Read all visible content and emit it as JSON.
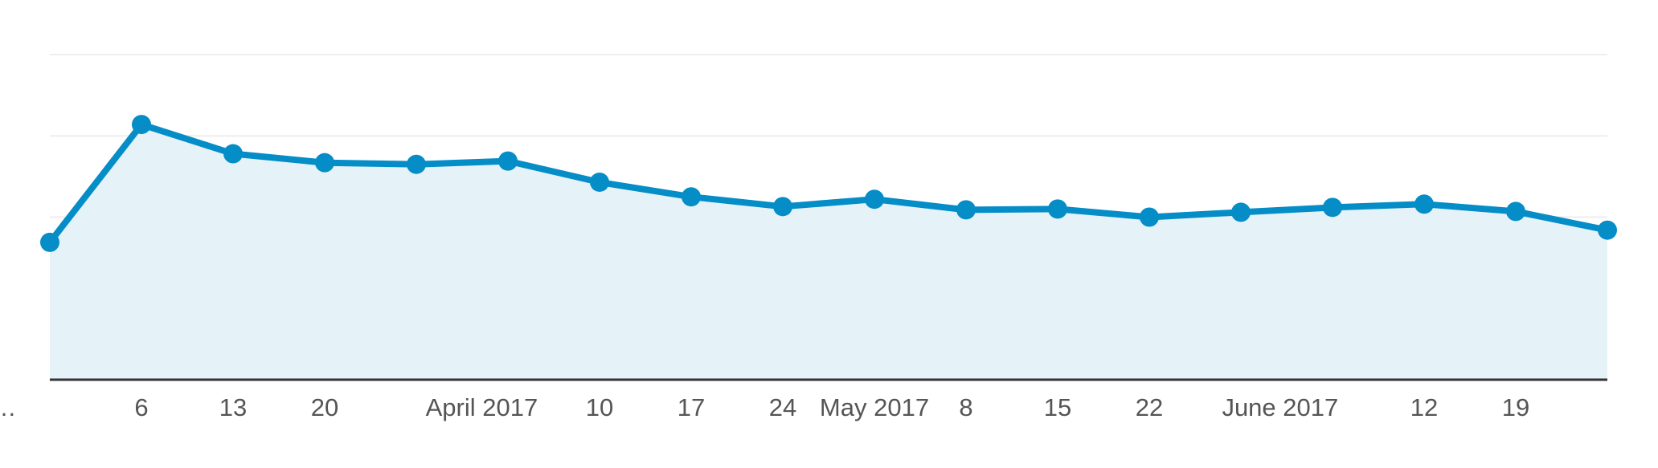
{
  "chart_data": {
    "type": "area",
    "title": "",
    "xlabel": "",
    "ylabel": "",
    "ylim": [
      0,
      4
    ],
    "grid": true,
    "y_axis_labels_visible": false,
    "tick_labels": [
      "…",
      "6",
      "13",
      "20",
      "April 2017",
      "10",
      "17",
      "24",
      "May 2017",
      "8",
      "15",
      "22",
      "June 2017",
      "12",
      "19"
    ],
    "x": [
      "2017-02-27",
      "2017-03-06",
      "2017-03-13",
      "2017-03-20",
      "2017-03-27",
      "2017-04-03",
      "2017-04-10",
      "2017-04-17",
      "2017-04-24",
      "2017-05-01",
      "2017-05-08",
      "2017-05-15",
      "2017-05-22",
      "2017-05-29",
      "2017-06-05",
      "2017-06-12",
      "2017-06-19",
      "2017-06-26"
    ],
    "series": [
      {
        "values": [
          1.69,
          3.14,
          2.78,
          2.67,
          2.65,
          2.69,
          2.43,
          2.25,
          2.13,
          2.22,
          2.09,
          2.1,
          2.0,
          2.06,
          2.12,
          2.16,
          2.07,
          1.84
        ]
      }
    ],
    "colors": {
      "line": "#058dc7",
      "fill": "#e5f2f7",
      "grid": "#eeeeee",
      "baseline": "#333333",
      "tick_text": "#555555"
    }
  }
}
